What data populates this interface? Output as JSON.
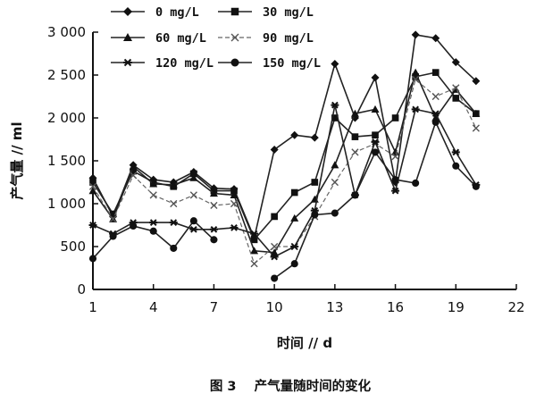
{
  "chart_data": {
    "type": "line",
    "caption": "图 3    产气量随时间的变化",
    "xlabel": "时间 // d",
    "ylabel": "产气量 // ml",
    "xlim": [
      1,
      22
    ],
    "ylim": [
      0,
      3000
    ],
    "x_ticks": [
      1,
      4,
      7,
      10,
      13,
      16,
      19,
      22
    ],
    "y_ticks": [
      0,
      500,
      1000,
      1500,
      2000,
      2500,
      3000
    ],
    "y_tick_labels": [
      "0",
      "500",
      "1 000",
      "1 500",
      "2 000",
      "2 500",
      "3 000"
    ],
    "grid": false,
    "legend_position": "top",
    "x": [
      1,
      2,
      3,
      4,
      5,
      6,
      7,
      8,
      9,
      10,
      11,
      12,
      13,
      14,
      15,
      16,
      17,
      18,
      19,
      20
    ],
    "series": [
      {
        "name": "0 mg/L",
        "marker": "diamond",
        "line_style": "solid",
        "values": [
          1300,
          850,
          1450,
          1280,
          1250,
          1370,
          1180,
          1170,
          600,
          1630,
          1800,
          1770,
          2630,
          2000,
          2470,
          1250,
          2970,
          2930,
          2650,
          2430
        ]
      },
      {
        "name": "30 mg/L",
        "marker": "square",
        "line_style": "solid",
        "values": [
          1250,
          880,
          1380,
          1250,
          1200,
          1350,
          1150,
          1150,
          580,
          850,
          1130,
          1250,
          2000,
          1780,
          1800,
          2000,
          2480,
          2530,
          2230,
          2050
        ]
      },
      {
        "name": "60 mg/L",
        "marker": "triangle",
        "line_style": "solid",
        "values": [
          1150,
          820,
          1430,
          1230,
          1220,
          1300,
          1120,
          1100,
          450,
          430,
          830,
          1050,
          1450,
          2050,
          2100,
          1600,
          2530,
          2000,
          2330,
          2050
        ]
      },
      {
        "name": "90 mg/L",
        "marker": "x",
        "line_style": "dashed",
        "values": [
          1200,
          820,
          1330,
          1100,
          1000,
          1100,
          980,
          1000,
          300,
          500,
          500,
          850,
          1250,
          1600,
          1700,
          1550,
          2450,
          2250,
          2350,
          1880
        ]
      },
      {
        "name": "120 mg/L",
        "marker": "asterisk",
        "line_style": "solid",
        "values": [
          750,
          650,
          780,
          780,
          780,
          700,
          700,
          720,
          650,
          380,
          500,
          920,
          2150,
          1100,
          1720,
          1150,
          2100,
          2050,
          1600,
          1220
        ]
      },
      {
        "name": "150 mg/L",
        "marker": "circle",
        "line_style": "solid",
        "values": [
          360,
          620,
          740,
          680,
          480,
          800,
          580,
          null,
          null,
          130,
          300,
          870,
          890,
          1100,
          1600,
          1280,
          1240,
          1950,
          1440,
          1200
        ]
      }
    ]
  }
}
